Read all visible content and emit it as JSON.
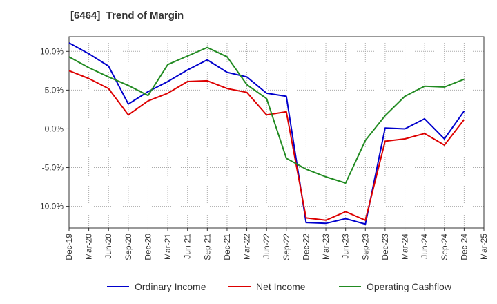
{
  "chart_data": {
    "type": "line",
    "title": "[6464]  Trend of Margin",
    "xlabel": "",
    "ylabel": "",
    "categories": [
      "Dec-19",
      "Mar-20",
      "Jun-20",
      "Sep-20",
      "Dec-20",
      "Mar-21",
      "Jun-21",
      "Sep-21",
      "Dec-21",
      "Mar-22",
      "Jun-22",
      "Sep-22",
      "Dec-22",
      "Mar-23",
      "Jun-23",
      "Sep-23",
      "Dec-23",
      "Mar-24",
      "Jun-24",
      "Sep-24",
      "Dec-24",
      "Mar-25"
    ],
    "y_ticks": [
      10.0,
      5.0,
      0.0,
      -5.0,
      -10.0
    ],
    "y_tick_labels": [
      "10.0%",
      "5.0%",
      "0.0%",
      "-5.0%",
      "-10.0%"
    ],
    "ylim": [
      -12.8,
      11.9
    ],
    "grid": true,
    "legend_position": "bottom",
    "series": [
      {
        "name": "Ordinary Income",
        "color": "#0000cc",
        "values": [
          11.1,
          9.7,
          8.1,
          3.2,
          4.8,
          6.1,
          7.6,
          8.9,
          7.3,
          6.7,
          4.6,
          4.2,
          -12.1,
          -12.2,
          -11.6,
          -12.3,
          0.1,
          0.0,
          1.3,
          -1.3,
          2.3,
          null
        ]
      },
      {
        "name": "Net Income",
        "color": "#dd0000",
        "values": [
          7.5,
          6.5,
          5.2,
          1.8,
          3.6,
          4.6,
          6.1,
          6.2,
          5.2,
          4.7,
          1.8,
          2.2,
          -11.5,
          -11.8,
          -10.7,
          -11.8,
          -1.6,
          -1.3,
          -0.6,
          -2.1,
          1.2,
          null
        ]
      },
      {
        "name": "Operating Cashflow",
        "color": "#228b22",
        "values": [
          9.3,
          7.9,
          6.7,
          5.6,
          4.3,
          8.3,
          9.4,
          10.5,
          9.3,
          5.7,
          3.9,
          -3.8,
          -5.2,
          -6.2,
          -7.0,
          -1.5,
          1.7,
          4.2,
          5.5,
          5.4,
          6.4,
          null
        ]
      }
    ]
  }
}
